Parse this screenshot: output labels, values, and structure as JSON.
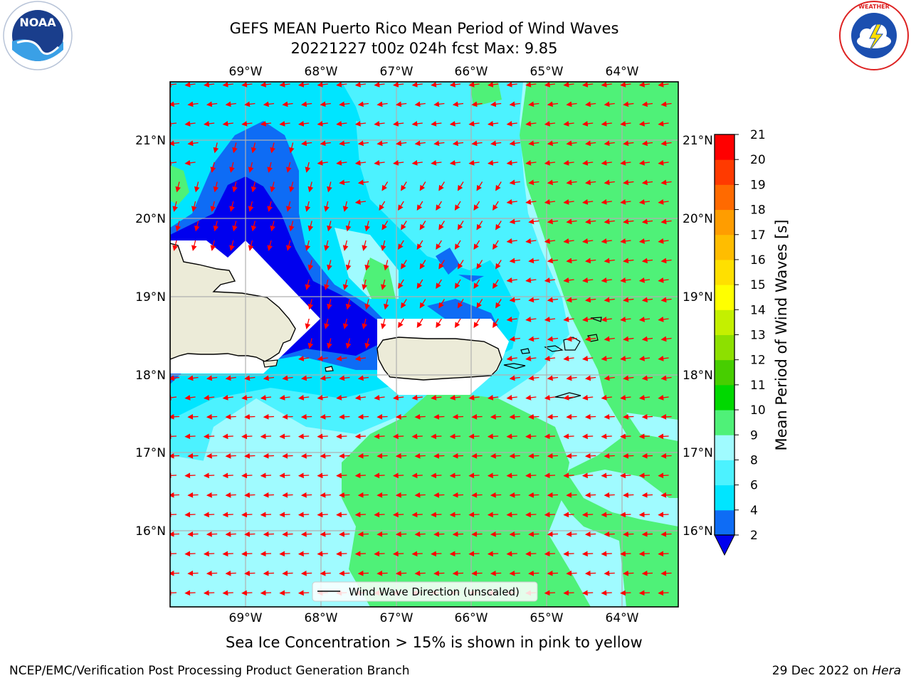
{
  "title": {
    "line1": "GEFS MEAN Puerto Rico Mean Period of Wind Waves",
    "line2": "20221227 t00z 024h fcst   Max: 9.85"
  },
  "logos": {
    "left": {
      "icon": "noaa-logo-icon",
      "text": "NOAA"
    },
    "right": {
      "icon": "nws-logo-icon",
      "text": "NATIONAL WEATHER SERVICE"
    }
  },
  "map": {
    "lon_labels": [
      "69°W",
      "68°W",
      "67°W",
      "66°W",
      "65°W",
      "64°W"
    ],
    "lat_labels": [
      "21°N",
      "20°N",
      "19°N",
      "18°N",
      "17°N",
      "16°N"
    ],
    "legend_label": "Wind Wave Direction (unscaled)",
    "arrow_color": "#ff0000",
    "land_color": "#ecebd8",
    "grid_color": "#b0b0b0"
  },
  "colorbar": {
    "label": "Mean Period of Wind Waves [s]",
    "ticks": [
      "2",
      "4",
      "6",
      "8",
      "9",
      "10",
      "11",
      "12",
      "13",
      "14",
      "15",
      "16",
      "17",
      "18",
      "19",
      "20",
      "21"
    ],
    "colors": [
      "#0000ee",
      "#0e6cf5",
      "#00e5ff",
      "#4cf2ff",
      "#a0fbff",
      "#4ff178",
      "#00d800",
      "#47ce00",
      "#8de000",
      "#c4f000",
      "#ffff00",
      "#ffe000",
      "#ffbd00",
      "#ff9d00",
      "#ff6a00",
      "#ff3a00",
      "#ff0000"
    ]
  },
  "caption": "Sea Ice Concentration > 15% is shown in pink to yellow",
  "footer": {
    "left": "NCEP/EMC/Verification Post Processing Product Generation Branch",
    "date": "29 Dec 2022 on",
    "host": "Hera"
  }
}
